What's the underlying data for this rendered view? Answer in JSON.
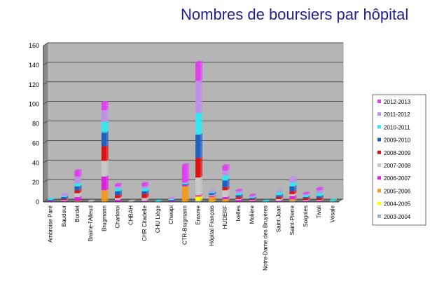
{
  "title": "Nombres de boursiers par hôpital",
  "chart_data": {
    "type": "bar",
    "stacked": true,
    "title": "Nombres de boursiers par hôpital",
    "xlabel": "",
    "ylabel": "",
    "ylim": [
      0,
      160
    ],
    "yticks": [
      0,
      20,
      40,
      60,
      80,
      100,
      120,
      140,
      160
    ],
    "grid": true,
    "legend_position": "right",
    "categories": [
      "Ambroise Paré",
      "Baudour",
      "Bordet",
      "Braine-l'Alleud",
      "Brugmann",
      "Charleroi",
      "CHBAH",
      "CHR Citadelle",
      "CHU Liège",
      "Chwapi",
      "CTR-Brugmann",
      "Erasme",
      "Hôpital Français",
      "HUDERF",
      "Ixelles",
      "Molière",
      "Notre-Dame des Bruyères",
      "Saint-Jean",
      "Saint-Pierre",
      "Soignies",
      "Tivoli",
      "Vésale"
    ],
    "series": [
      {
        "name": "2003-2004",
        "color": "#9ab3cc",
        "values": [
          0,
          0,
          0,
          0,
          0,
          0,
          0,
          0,
          0,
          0,
          0,
          1,
          0,
          0,
          0,
          0,
          0,
          0,
          1,
          0,
          0,
          1
        ]
      },
      {
        "name": "2004-2005",
        "color": "#ffff00",
        "values": [
          0,
          0,
          0,
          0,
          0,
          0,
          0,
          0,
          0,
          0,
          0,
          4,
          1,
          0,
          0,
          0,
          0,
          0,
          0,
          0,
          0,
          0
        ]
      },
      {
        "name": "2005-2006",
        "color": "#f39a1e",
        "values": [
          0,
          0,
          1,
          0,
          12,
          0,
          0,
          0,
          0,
          0,
          16,
          1,
          4,
          3,
          0,
          0,
          0,
          0,
          2,
          0,
          0,
          0
        ]
      },
      {
        "name": "2006-2007",
        "color": "#e020e0",
        "values": [
          1,
          1,
          4,
          0,
          14,
          2,
          0,
          1,
          0,
          1,
          1,
          1,
          1,
          2,
          2,
          1,
          0,
          1,
          3,
          1,
          1,
          0
        ]
      },
      {
        "name": "2007-2008",
        "color": "#c8c8c8",
        "values": [
          0,
          1,
          4,
          1,
          16,
          2,
          1,
          3,
          0,
          0,
          0,
          18,
          1,
          7,
          1,
          1,
          0,
          2,
          2,
          1,
          1,
          0
        ]
      },
      {
        "name": "2008-2009",
        "color": "#e01010",
        "values": [
          0,
          1,
          3,
          0,
          15,
          3,
          0,
          4,
          0,
          0,
          0,
          20,
          0,
          3,
          2,
          1,
          0,
          2,
          3,
          2,
          2,
          0
        ]
      },
      {
        "name": "2009-2010",
        "color": "#2060c0",
        "values": [
          1,
          2,
          4,
          0,
          14,
          4,
          0,
          3,
          0,
          1,
          1,
          24,
          2,
          7,
          2,
          1,
          0,
          2,
          5,
          1,
          2,
          0
        ]
      },
      {
        "name": "2010-2011",
        "color": "#30e8f0",
        "values": [
          1,
          1,
          3,
          0,
          11,
          3,
          0,
          3,
          1,
          1,
          1,
          22,
          1,
          5,
          2,
          1,
          1,
          3,
          4,
          2,
          3,
          1
        ]
      },
      {
        "name": "2011-2012",
        "color": "#c090e8",
        "values": [
          0,
          2,
          7,
          0,
          12,
          2,
          0,
          2,
          0,
          1,
          1,
          33,
          1,
          5,
          2,
          1,
          0,
          1,
          5,
          1,
          3,
          0
        ]
      },
      {
        "name": "2012-2013",
        "color": "#e040f0",
        "values": [
          0,
          0,
          6,
          0,
          8,
          2,
          0,
          3,
          0,
          0,
          18,
          19,
          0,
          5,
          1,
          1,
          0,
          0,
          0,
          1,
          2,
          0
        ]
      }
    ]
  }
}
